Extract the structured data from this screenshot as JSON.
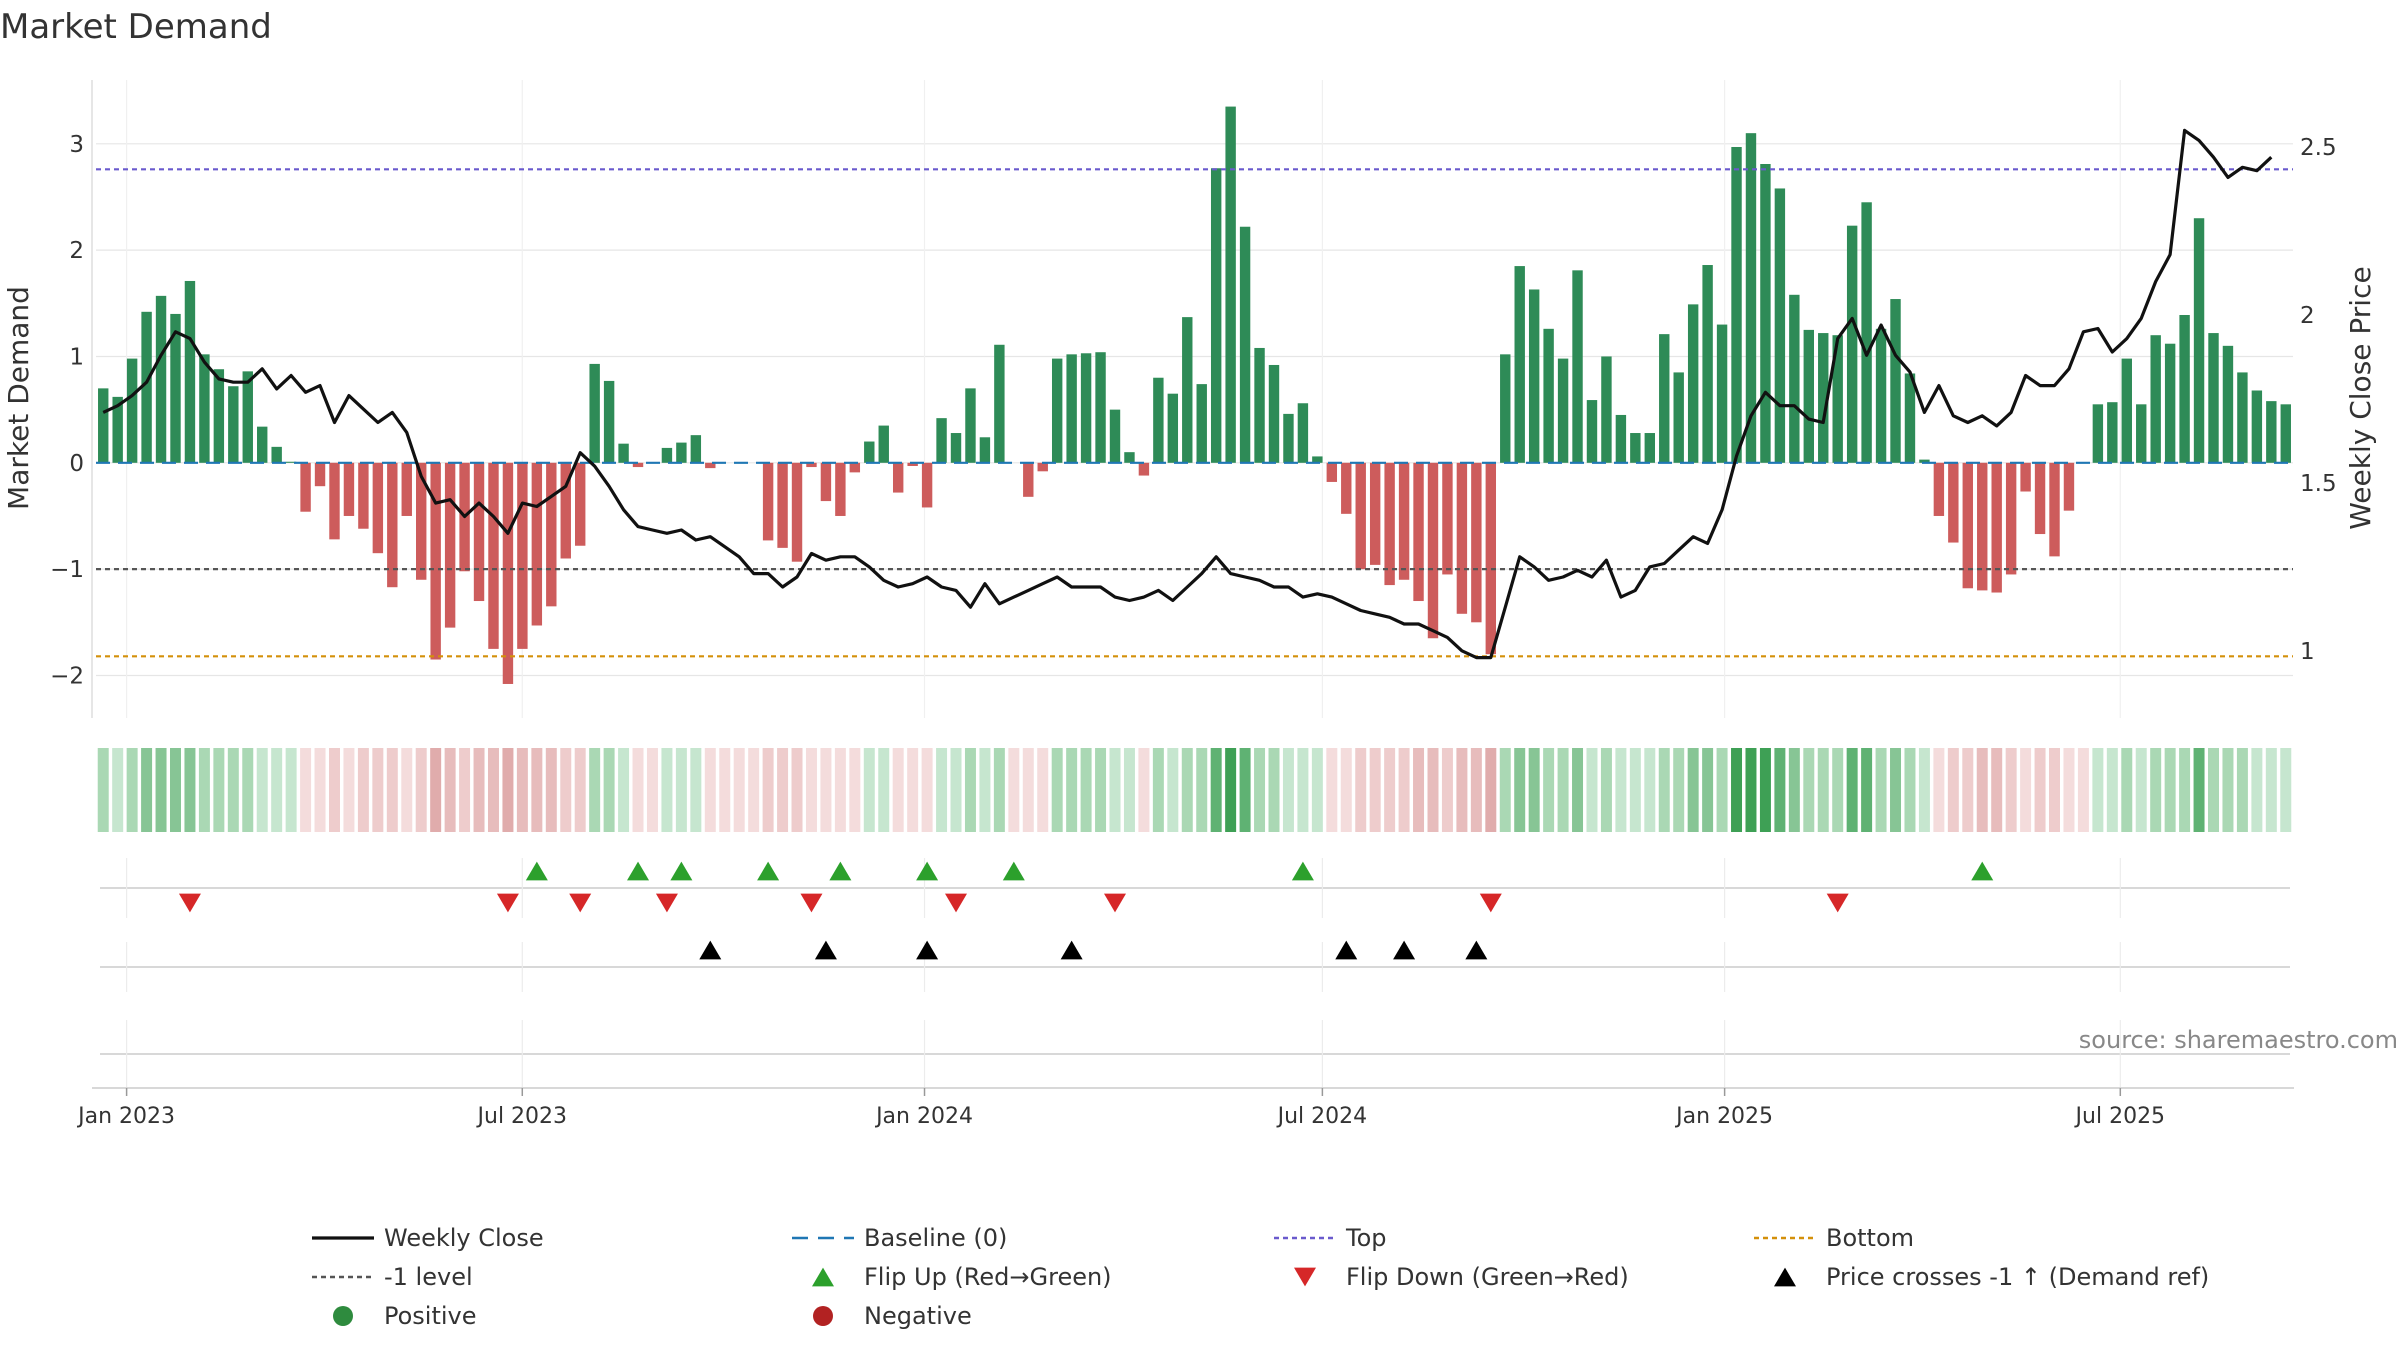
{
  "chart_data": {
    "type": "bar",
    "title": "Market Demand",
    "ylabel": "Market Demand",
    "y2label": "Weekly Close Price",
    "ylim": [
      -2.4,
      3.6
    ],
    "y2lim": [
      0.8,
      2.7
    ],
    "yticks": [
      -2,
      -1,
      0,
      1,
      2,
      3
    ],
    "y2ticks": [
      1,
      1.5,
      2,
      2.5
    ],
    "ytick_labels": [
      "−2",
      "−1",
      "0",
      "1",
      "2",
      "3"
    ],
    "y2tick_labels": [
      "1",
      "1.5",
      "2",
      "2.5"
    ],
    "x_start": "2022-12-18",
    "x_step_days": 7,
    "x_end": "2025-09-18",
    "x_ticks": [
      {
        "date": "2023-01-01",
        "label": "Jan 2023"
      },
      {
        "date": "2023-07-01",
        "label": "Jul 2023"
      },
      {
        "date": "2024-01-01",
        "label": "Jan 2024"
      },
      {
        "date": "2024-07-01",
        "label": "Jul 2024"
      },
      {
        "date": "2025-01-01",
        "label": "Jan 2025"
      },
      {
        "date": "2025-07-01",
        "label": "Jul 2025"
      }
    ],
    "top_level": 2.76,
    "minus1_level": -1,
    "bottom_level": -1.82,
    "demand": [
      0.7,
      0.62,
      0.98,
      1.42,
      1.57,
      1.4,
      1.71,
      1.02,
      0.88,
      0.72,
      0.86,
      0.34,
      0.15,
      0.01,
      -0.46,
      -0.22,
      -0.72,
      -0.5,
      -0.62,
      -0.85,
      -1.17,
      -0.5,
      -1.1,
      -1.85,
      -1.55,
      -1.02,
      -1.3,
      -1.75,
      -2.08,
      -1.75,
      -1.53,
      -1.35,
      -0.9,
      -0.78,
      0.93,
      0.77,
      0.18,
      -0.04,
      0.0,
      0.14,
      0.19,
      0.26,
      -0.05,
      0.0,
      0.0,
      0.0,
      -0.73,
      -0.8,
      -0.93,
      -0.04,
      -0.36,
      -0.5,
      -0.09,
      0.2,
      0.35,
      -0.28,
      -0.03,
      -0.42,
      0.42,
      0.28,
      0.7,
      0.24,
      1.11,
      0.0,
      -0.32,
      -0.08,
      0.98,
      1.02,
      1.03,
      1.04,
      0.5,
      0.1,
      -0.12,
      0.8,
      0.65,
      1.37,
      0.74,
      2.77,
      3.35,
      2.22,
      1.08,
      0.92,
      0.46,
      0.56,
      0.06,
      -0.18,
      -0.48,
      -1.0,
      -0.96,
      -1.15,
      -1.1,
      -1.3,
      -1.65,
      -1.05,
      -1.42,
      -1.5,
      -1.8,
      1.02,
      1.85,
      1.63,
      1.26,
      0.98,
      1.81,
      0.59,
      1.0,
      0.45,
      0.28,
      0.28,
      1.21,
      0.85,
      1.49,
      1.86,
      1.3,
      2.97,
      3.1,
      2.81,
      2.58,
      1.58,
      1.25,
      1.22,
      1.2,
      2.23,
      2.45,
      1.26,
      1.54,
      0.84,
      0.03,
      -0.5,
      -0.75,
      -1.18,
      -1.2,
      -1.22,
      -1.05,
      -0.27,
      -0.67,
      -0.88,
      -0.45,
      0.0,
      0.55,
      0.57,
      0.98,
      0.55,
      1.2,
      1.12,
      1.39,
      2.3,
      1.22,
      1.1,
      0.85,
      0.68,
      0.58,
      0.55
    ],
    "close": [
      1.71,
      1.73,
      1.76,
      1.8,
      1.88,
      1.95,
      1.93,
      1.86,
      1.81,
      1.8,
      1.8,
      1.84,
      1.78,
      1.82,
      1.77,
      1.79,
      1.68,
      1.76,
      1.72,
      1.68,
      1.71,
      1.65,
      1.52,
      1.44,
      1.45,
      1.4,
      1.44,
      1.4,
      1.35,
      1.44,
      1.43,
      1.46,
      1.49,
      1.59,
      1.55,
      1.49,
      1.42,
      1.37,
      1.36,
      1.35,
      1.36,
      1.33,
      1.34,
      1.31,
      1.28,
      1.23,
      1.23,
      1.19,
      1.22,
      1.29,
      1.27,
      1.28,
      1.28,
      1.25,
      1.21,
      1.19,
      1.2,
      1.22,
      1.19,
      1.18,
      1.13,
      1.2,
      1.14,
      1.16,
      1.18,
      1.2,
      1.22,
      1.19,
      1.19,
      1.19,
      1.16,
      1.15,
      1.16,
      1.18,
      1.15,
      1.19,
      1.23,
      1.28,
      1.23,
      1.22,
      1.21,
      1.19,
      1.19,
      1.16,
      1.17,
      1.16,
      1.14,
      1.12,
      1.11,
      1.1,
      1.08,
      1.08,
      1.06,
      1.04,
      1.0,
      0.98,
      0.98,
      1.13,
      1.28,
      1.25,
      1.21,
      1.22,
      1.24,
      1.22,
      1.27,
      1.16,
      1.18,
      1.25,
      1.26,
      1.3,
      1.34,
      1.32,
      1.42,
      1.58,
      1.7,
      1.77,
      1.73,
      1.73,
      1.69,
      1.68,
      1.93,
      1.99,
      1.88,
      1.97,
      1.88,
      1.83,
      1.71,
      1.79,
      1.7,
      1.68,
      1.7,
      1.67,
      1.71,
      1.82,
      1.79,
      1.79,
      1.84,
      1.95,
      1.96,
      1.89,
      1.93,
      1.99,
      2.1,
      2.18,
      2.55,
      2.52,
      2.47,
      2.41,
      2.44,
      2.43,
      2.47
    ],
    "flip_up_weeks": [
      30,
      37,
      40,
      46,
      51,
      57,
      63,
      83,
      130
    ],
    "flip_down_weeks": [
      6,
      28,
      33,
      39,
      49,
      59,
      70,
      96,
      120
    ],
    "price_cross_weeks": [
      42,
      50,
      57,
      67,
      86,
      90,
      95
    ],
    "legend": [
      {
        "key": "weekly-close",
        "label": "Weekly Close",
        "style": "line",
        "color": "#111111"
      },
      {
        "key": "baseline",
        "label": "Baseline (0)",
        "style": "dashed",
        "color": "#1f77b4"
      },
      {
        "key": "top",
        "label": "Top",
        "style": "dotted",
        "color": "#6a5acd"
      },
      {
        "key": "bottom",
        "label": "Bottom",
        "style": "dotted",
        "color": "#d4900a"
      },
      {
        "key": "minus1",
        "label": "-1 level",
        "style": "dotted",
        "color": "#555555"
      },
      {
        "key": "flip-up",
        "label": "Flip Up (Red→Green)",
        "style": "tri-up",
        "color": "#2ca02c"
      },
      {
        "key": "flip-down",
        "label": "Flip Down (Green→Red)",
        "style": "tri-down",
        "color": "#d62728"
      },
      {
        "key": "price-cross",
        "label": "Price crosses -1 ↑ (Demand ref)",
        "style": "tri-up",
        "color": "#000000"
      },
      {
        "key": "positive",
        "label": "Positive",
        "style": "dot",
        "color": "#2e8b3e"
      },
      {
        "key": "negative",
        "label": "Negative",
        "style": "dot",
        "color": "#b22222"
      }
    ],
    "source": "source: sharemaestro.com"
  },
  "colors": {
    "positive_bar": "#2e8b57",
    "negative_bar": "#cd5c5c",
    "close_line": "#111111",
    "baseline": "#1f77b4",
    "top": "#6a5acd",
    "bottom": "#d4900a",
    "minus1": "#555555",
    "grid": "#e6e6e6",
    "axis_text": "#333333",
    "source_text": "#888888"
  }
}
